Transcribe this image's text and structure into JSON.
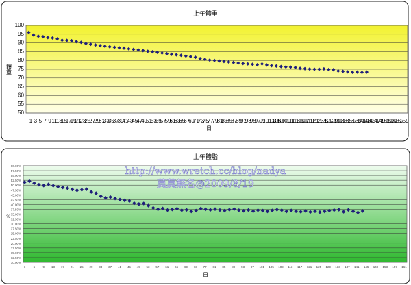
{
  "watermark": {
    "url": "http://www.wretch.cc/blog/nadya",
    "credit": "莫莫無名@2009/8/19"
  },
  "chart_data": [
    {
      "type": "scatter",
      "title": "上午體重",
      "xlabel": "日",
      "ylabel": "體重",
      "ylim": [
        50,
        100
      ],
      "y_ticks": [
        50,
        55,
        60,
        65,
        70,
        75,
        80,
        85,
        90,
        95,
        100
      ],
      "xlim": [
        1,
        159
      ],
      "x_tick_labels": [
        "1",
        "3",
        "5",
        "7",
        "9",
        "11",
        "13",
        "15",
        "17",
        "19",
        "21",
        "23",
        "25",
        "27",
        "29",
        "31",
        "33",
        "35",
        "37",
        "39",
        "41",
        "43",
        "45",
        "47",
        "49",
        "51",
        "53",
        "55",
        "57",
        "59",
        "61",
        "63",
        "65",
        "67",
        "69",
        "71",
        "73",
        "75",
        "77",
        "79",
        "81",
        "83",
        "85",
        "87",
        "89",
        "91",
        "93",
        "95",
        "97",
        "99",
        "101",
        "103",
        "105",
        "107",
        "109",
        "111",
        "113",
        "115",
        "117",
        "119",
        "121",
        "123",
        "125",
        "127",
        "129",
        "131",
        "133",
        "135",
        "137",
        "139",
        "141",
        "143",
        "145",
        "147",
        "149",
        "151",
        "153",
        "155",
        "157",
        "159"
      ],
      "grid": true,
      "background": "yellow-gradient",
      "marker_color": "#1f1f7a",
      "series": [
        {
          "x": [
            1,
            3,
            5,
            7,
            9,
            11,
            13,
            15,
            17,
            19,
            21,
            23,
            25,
            27,
            29,
            31,
            33,
            35,
            37,
            39,
            41,
            43,
            45,
            47,
            49,
            51,
            53,
            55,
            57,
            59,
            61,
            63,
            65,
            67,
            69,
            71,
            73,
            75,
            77,
            79,
            81,
            83,
            85,
            87,
            89,
            91,
            93,
            95,
            97,
            99,
            101,
            103,
            105,
            107,
            109,
            111,
            113,
            115,
            117,
            119,
            121,
            123,
            125,
            127,
            129,
            131,
            133,
            135,
            137,
            139,
            141,
            143
          ],
          "y": [
            96,
            94.5,
            93.8,
            93.5,
            93,
            92.8,
            92.3,
            91.5,
            91.4,
            91.2,
            90.7,
            90.3,
            89.6,
            89.2,
            88.8,
            88.4,
            88.1,
            87.8,
            87.5,
            87.2,
            87,
            86.6,
            86.3,
            86,
            85.6,
            85.2,
            84.9,
            84.6,
            84.2,
            83.8,
            83.5,
            83.2,
            82.9,
            82.5,
            82.2,
            81.8,
            81,
            80.6,
            80.2,
            80,
            79.7,
            79.4,
            79.1,
            78.8,
            78.5,
            78.2,
            78,
            77.8,
            77.5,
            78,
            77.4,
            77,
            76.8,
            76.5,
            76.3,
            76.2,
            76,
            75.5,
            75.3,
            75.1,
            75,
            75,
            75.2,
            74.8,
            74.7,
            74,
            73.8,
            73.5,
            73.3,
            73.4,
            73.2,
            73.4
          ]
        }
      ]
    },
    {
      "type": "scatter",
      "title": "上午體脂",
      "xlabel": "日",
      "ylabel": "%",
      "ylim": [
        10,
        60
      ],
      "y_ticks": [
        "10.00%",
        "12.50%",
        "15.00%",
        "17.50%",
        "20.00%",
        "22.50%",
        "25.00%",
        "27.50%",
        "30.00%",
        "32.50%",
        "35.00%",
        "37.50%",
        "40.00%",
        "42.50%",
        "45.00%",
        "47.50%",
        "50.00%",
        "52.50%",
        "55.00%",
        "57.50%",
        "60.00%"
      ],
      "xlim": [
        1,
        161
      ],
      "x_tick_labels": [
        "1",
        "5",
        "9",
        "13",
        "17",
        "21",
        "25",
        "29",
        "33",
        "37",
        "41",
        "45",
        "49",
        "53",
        "57",
        "61",
        "65",
        "69",
        "73",
        "77",
        "81",
        "85",
        "89",
        "93",
        "97",
        "101",
        "105",
        "109",
        "113",
        "117",
        "121",
        "125",
        "129",
        "133",
        "137",
        "141",
        "145",
        "149",
        "153",
        "157",
        "161"
      ],
      "grid": true,
      "background": "green-gradient",
      "marker_color": "#1f1f7a",
      "series": [
        {
          "x": [
            1,
            3,
            5,
            7,
            9,
            11,
            13,
            15,
            17,
            19,
            21,
            23,
            25,
            27,
            29,
            31,
            33,
            35,
            37,
            39,
            41,
            43,
            45,
            47,
            49,
            51,
            53,
            55,
            57,
            59,
            61,
            63,
            65,
            67,
            69,
            71,
            73,
            75,
            77,
            79,
            81,
            83,
            85,
            87,
            89,
            91,
            93,
            95,
            97,
            99,
            101,
            103,
            105,
            107,
            109,
            111,
            113,
            115,
            117,
            119,
            121,
            123,
            125,
            127,
            129,
            131,
            133,
            135,
            137,
            139,
            141,
            143
          ],
          "y": [
            51.5,
            52,
            51,
            50.2,
            49.8,
            50.4,
            49.7,
            49.2,
            48.8,
            48.4,
            47.8,
            47.3,
            47.6,
            47.9,
            46.5,
            45.8,
            44.2,
            43.4,
            43.8,
            43.1,
            42.5,
            42.1,
            41.8,
            40.6,
            40.2,
            40.5,
            39.4,
            38.2,
            37.5,
            37.9,
            37.1,
            37.4,
            37.8,
            37,
            37.2,
            36.4,
            36.8,
            37.9,
            37.5,
            37.2,
            37.6,
            37.1,
            36.8,
            37.3,
            37.6,
            37,
            36.7,
            37.1,
            36.5,
            37,
            36.8,
            36.4,
            36.9,
            37.3,
            37,
            36.4,
            36.9,
            36.5,
            36.2,
            36.6,
            36.1,
            36.5,
            36,
            36.4,
            36.8,
            37.1,
            37.3,
            36.2,
            37.2,
            36.4,
            35.8,
            36.6
          ]
        }
      ]
    }
  ]
}
